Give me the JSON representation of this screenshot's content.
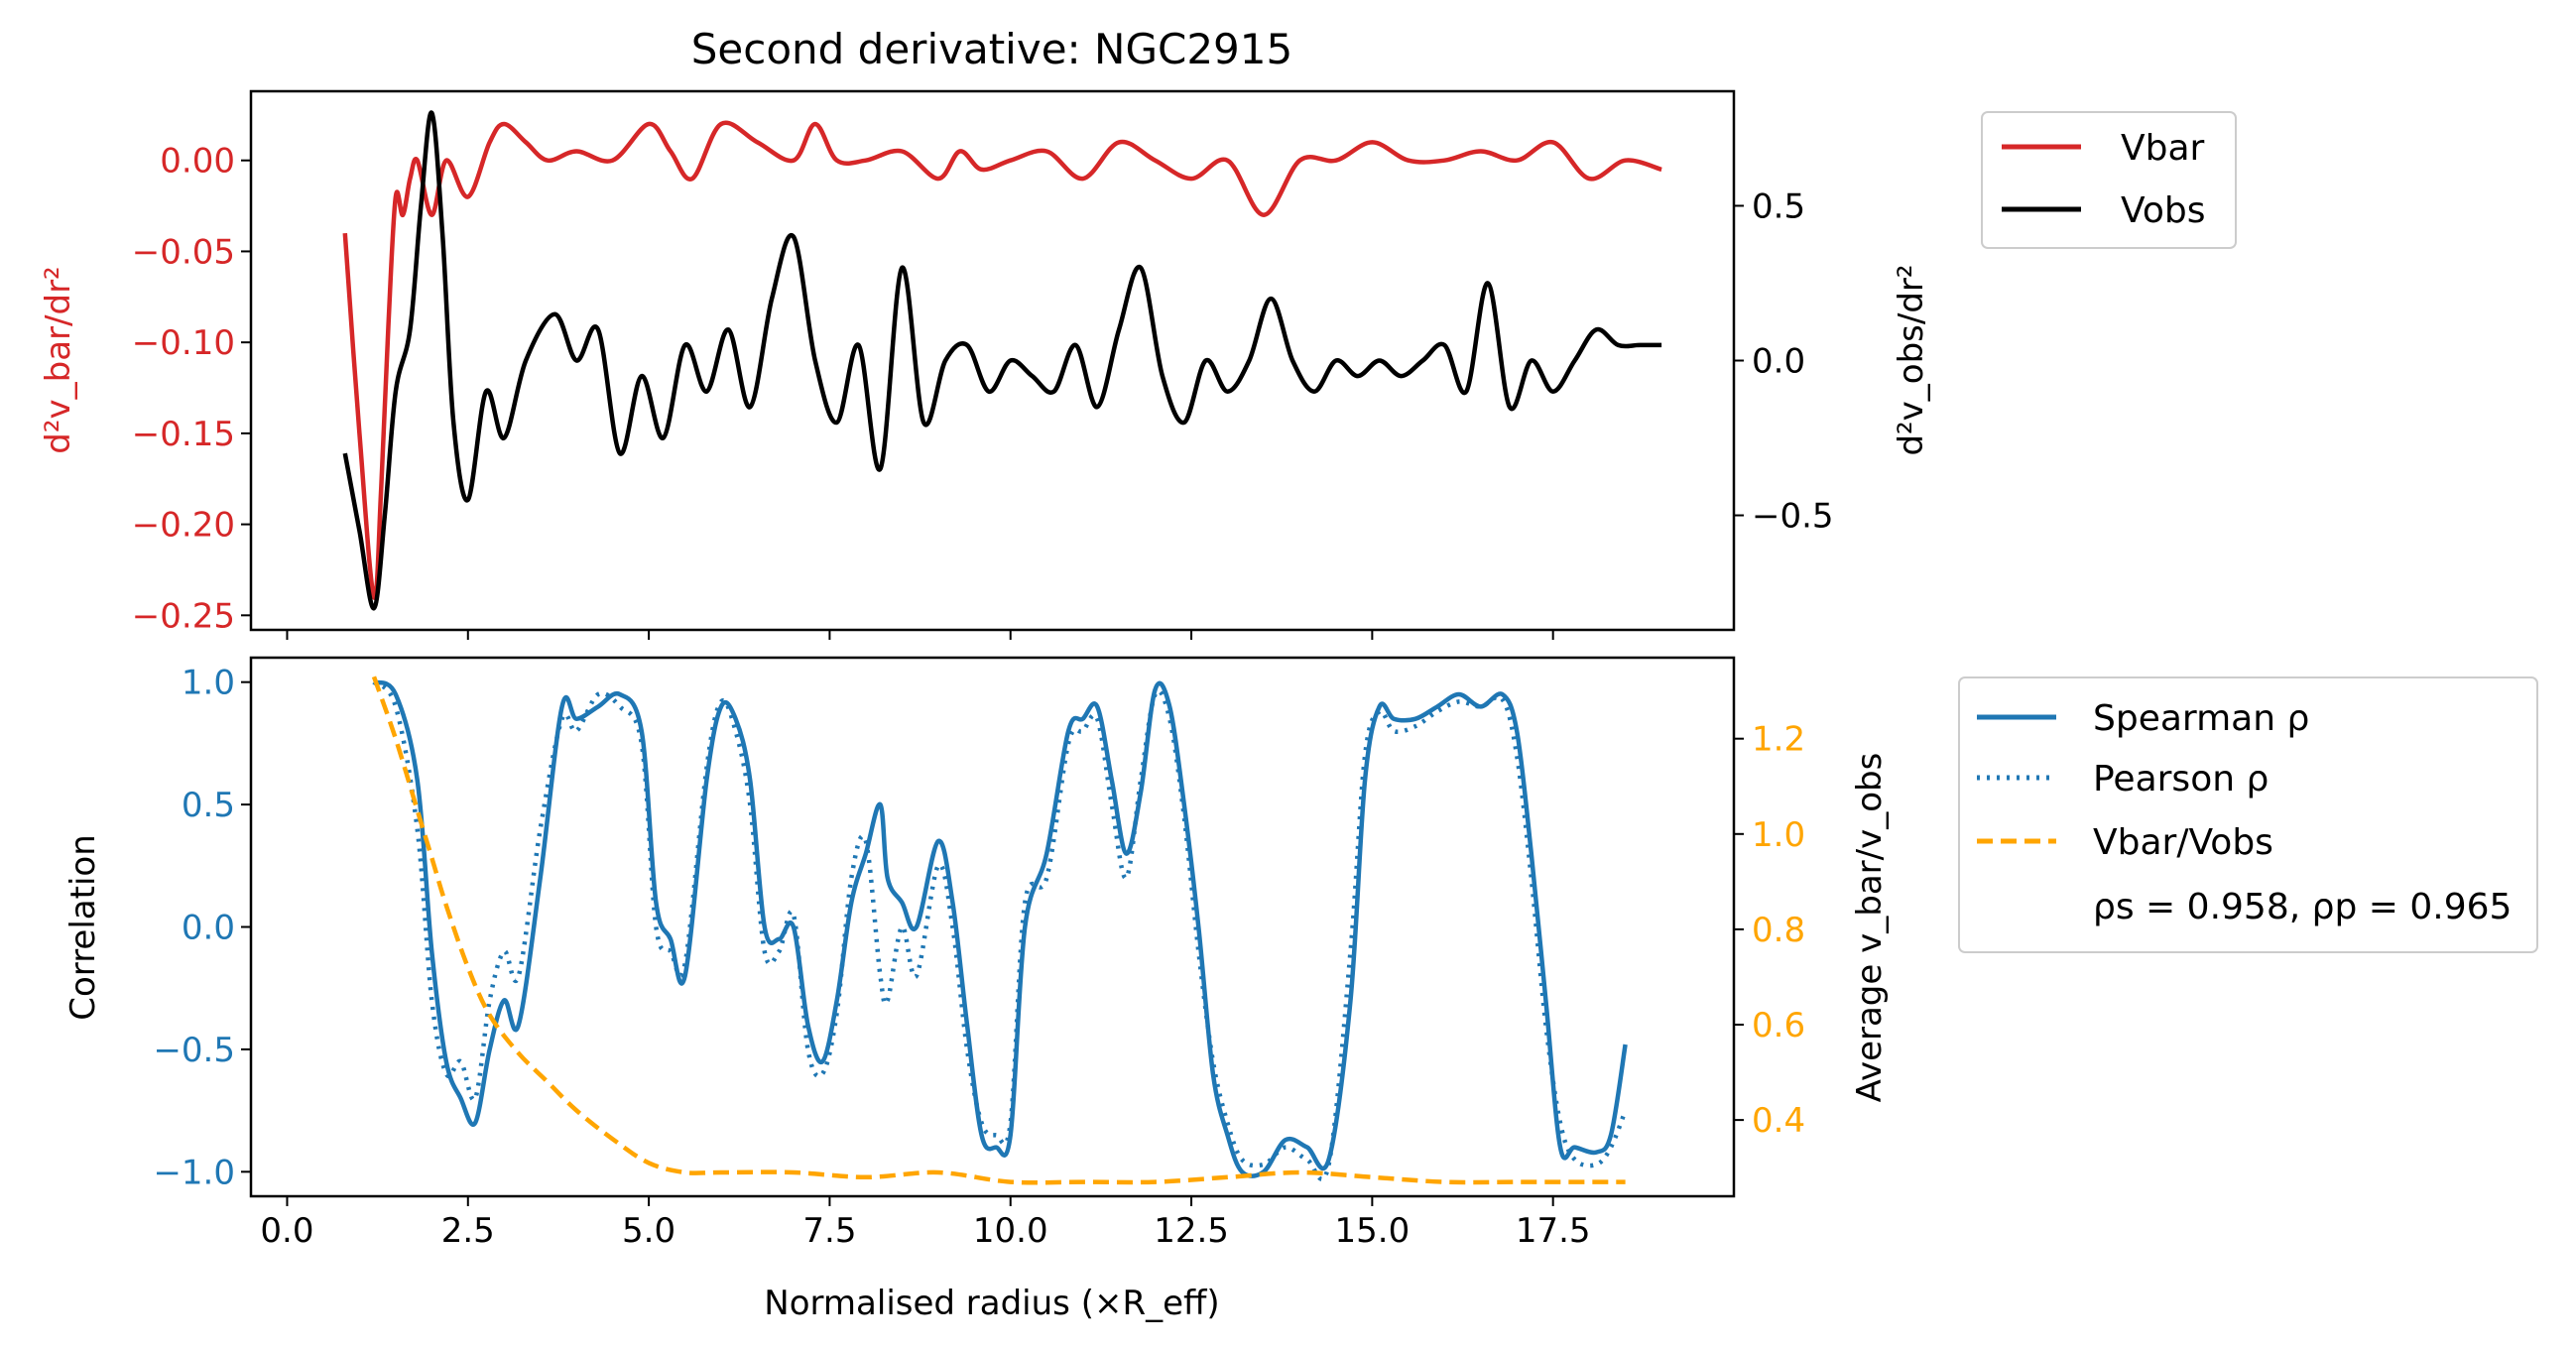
{
  "figure_title": "Second derivative: NGC2915",
  "colors": {
    "vbar": "#d62728",
    "vobs": "#000000",
    "spearman": "#1f77b4",
    "pearson": "#1f77b4",
    "ratio": "#ffa500"
  },
  "chart_data": [
    {
      "type": "line",
      "panel": "top",
      "title": "Second derivative: NGC2915",
      "xlim": [
        -0.5,
        20.0
      ],
      "left_axis": {
        "label": "d²v_bar/dr²",
        "ylim": [
          -0.258,
          0.038
        ],
        "ticks": [
          0.0,
          -0.05,
          -0.1,
          -0.15,
          -0.2,
          -0.25
        ],
        "tick_labels": [
          "0.00",
          "−0.05",
          "−0.10",
          "−0.15",
          "−0.20",
          "−0.25"
        ]
      },
      "right_axis": {
        "label": "d²v_obs/dr²",
        "ylim": [
          -0.87,
          0.87
        ],
        "ticks": [
          0.5,
          0.0,
          -0.5
        ],
        "tick_labels": [
          "0.5",
          "0.0",
          "−0.5"
        ]
      },
      "legend": {
        "placement": "outside-top-right",
        "entries": [
          "Vbar",
          "Vobs"
        ]
      },
      "series": [
        {
          "name": "Vbar",
          "axis": "left",
          "x": [
            0.8,
            1.0,
            1.2,
            1.3,
            1.4,
            1.5,
            1.6,
            1.7,
            1.8,
            2.0,
            2.2,
            2.5,
            2.8,
            3.0,
            3.3,
            3.6,
            4.0,
            4.5,
            5.0,
            5.3,
            5.6,
            6.0,
            6.5,
            7.0,
            7.3,
            7.6,
            8.0,
            8.5,
            9.0,
            9.3,
            9.6,
            10.0,
            10.5,
            11.0,
            11.5,
            12.0,
            12.5,
            13.0,
            13.5,
            14.0,
            14.5,
            15.0,
            15.5,
            16.0,
            16.5,
            17.0,
            17.5,
            18.0,
            18.5,
            19.0
          ],
          "values": [
            -0.04,
            -0.15,
            -0.24,
            -0.18,
            -0.09,
            -0.02,
            -0.03,
            -0.01,
            0.0,
            -0.03,
            0.0,
            -0.02,
            0.01,
            0.02,
            0.01,
            0.0,
            0.005,
            0.0,
            0.02,
            0.005,
            -0.01,
            0.02,
            0.01,
            0.0,
            0.02,
            0.0,
            0.0,
            0.005,
            -0.01,
            0.005,
            -0.005,
            0.0,
            0.005,
            -0.01,
            0.01,
            0.0,
            -0.01,
            0.0,
            -0.03,
            0.0,
            0.0,
            0.01,
            0.0,
            0.0,
            0.005,
            0.0,
            0.01,
            -0.01,
            0.0,
            -0.005
          ]
        },
        {
          "name": "Vobs",
          "axis": "right",
          "x": [
            0.8,
            1.0,
            1.2,
            1.35,
            1.5,
            1.7,
            1.85,
            2.0,
            2.15,
            2.3,
            2.5,
            2.75,
            3.0,
            3.3,
            3.7,
            4.0,
            4.3,
            4.6,
            4.9,
            5.2,
            5.5,
            5.8,
            6.1,
            6.4,
            6.7,
            7.0,
            7.3,
            7.6,
            7.9,
            8.2,
            8.5,
            8.8,
            9.1,
            9.4,
            9.7,
            10.0,
            10.3,
            10.6,
            10.9,
            11.2,
            11.5,
            11.8,
            12.1,
            12.4,
            12.7,
            13.0,
            13.3,
            13.6,
            13.9,
            14.2,
            14.5,
            14.8,
            15.1,
            15.4,
            15.7,
            16.0,
            16.3,
            16.6,
            16.9,
            17.2,
            17.5,
            17.8,
            18.1,
            18.4,
            18.7,
            19.0
          ],
          "values": [
            -0.3,
            -0.55,
            -0.8,
            -0.5,
            -0.1,
            0.1,
            0.5,
            0.8,
            0.4,
            -0.2,
            -0.45,
            -0.1,
            -0.25,
            0.0,
            0.15,
            0.0,
            0.1,
            -0.3,
            -0.05,
            -0.25,
            0.05,
            -0.1,
            0.1,
            -0.15,
            0.2,
            0.4,
            0.0,
            -0.2,
            0.05,
            -0.35,
            0.3,
            -0.2,
            0.0,
            0.05,
            -0.1,
            0.0,
            -0.05,
            -0.1,
            0.05,
            -0.15,
            0.1,
            0.3,
            -0.05,
            -0.2,
            0.0,
            -0.1,
            0.0,
            0.2,
            0.0,
            -0.1,
            0.0,
            -0.05,
            0.0,
            -0.05,
            0.0,
            0.05,
            -0.1,
            0.25,
            -0.15,
            0.0,
            -0.1,
            0.0,
            0.1,
            0.05,
            0.05,
            0.05
          ]
        }
      ]
    },
    {
      "type": "line",
      "panel": "bottom",
      "xlabel": "Normalised radius (×R_eff)",
      "xlim": [
        -0.5,
        20.0
      ],
      "x_ticks": [
        0.0,
        2.5,
        5.0,
        7.5,
        10.0,
        12.5,
        15.0,
        17.5
      ],
      "x_tick_labels": [
        "0.0",
        "2.5",
        "5.0",
        "7.5",
        "10.0",
        "12.5",
        "15.0",
        "17.5"
      ],
      "left_axis": {
        "label": "Correlation",
        "ylim": [
          -1.1,
          1.1
        ],
        "ticks": [
          1.0,
          0.5,
          0.0,
          -0.5,
          -1.0
        ],
        "tick_labels": [
          "1.0",
          "0.5",
          "0.0",
          "−0.5",
          "−1.0"
        ]
      },
      "right_axis": {
        "label": "Average v_bar/v_obs",
        "ylim": [
          0.24,
          1.37
        ],
        "ticks": [
          1.2,
          1.0,
          0.8,
          0.6,
          0.4
        ],
        "tick_labels": [
          "1.2",
          "1.0",
          "0.8",
          "0.6",
          "0.4"
        ]
      },
      "legend": {
        "placement": "outside-right",
        "entries": [
          "Spearman ρ",
          "Pearson ρ",
          "Vbar/Vobs"
        ],
        "annotation": "ρs = 0.958, ρp = 0.965"
      },
      "series": [
        {
          "name": "Spearman ρ",
          "axis": "left",
          "style": "solid",
          "x": [
            1.2,
            1.5,
            1.8,
            2.0,
            2.2,
            2.4,
            2.6,
            2.8,
            3.0,
            3.2,
            3.5,
            3.8,
            4.0,
            4.3,
            4.6,
            4.9,
            5.1,
            5.3,
            5.5,
            5.8,
            6.0,
            6.2,
            6.4,
            6.6,
            6.8,
            7.0,
            7.2,
            7.4,
            7.6,
            7.8,
            8.0,
            8.2,
            8.3,
            8.5,
            8.7,
            9.0,
            9.2,
            9.4,
            9.6,
            9.8,
            10.0,
            10.2,
            10.5,
            10.8,
            11.0,
            11.2,
            11.4,
            11.6,
            11.8,
            12.0,
            12.2,
            12.4,
            12.6,
            12.8,
            13.0,
            13.2,
            13.5,
            13.8,
            14.1,
            14.4,
            14.7,
            14.9,
            15.1,
            15.3,
            15.6,
            15.9,
            16.2,
            16.5,
            16.8,
            17.0,
            17.2,
            17.4,
            17.6,
            17.8,
            18.1,
            18.3,
            18.5
          ],
          "values": [
            1.0,
            0.95,
            0.6,
            -0.1,
            -0.55,
            -0.7,
            -0.8,
            -0.5,
            -0.3,
            -0.4,
            0.2,
            0.9,
            0.85,
            0.9,
            0.95,
            0.8,
            0.1,
            -0.05,
            -0.2,
            0.6,
            0.9,
            0.85,
            0.6,
            0.0,
            -0.05,
            0.0,
            -0.4,
            -0.55,
            -0.3,
            0.1,
            0.3,
            0.5,
            0.2,
            0.1,
            0.0,
            0.35,
            0.1,
            -0.4,
            -0.85,
            -0.9,
            -0.85,
            0.0,
            0.3,
            0.8,
            0.85,
            0.9,
            0.6,
            0.3,
            0.55,
            0.97,
            0.9,
            0.5,
            0.0,
            -0.6,
            -0.85,
            -1.0,
            -1.0,
            -0.87,
            -0.9,
            -0.95,
            -0.3,
            0.6,
            0.9,
            0.85,
            0.85,
            0.9,
            0.95,
            0.9,
            0.95,
            0.8,
            0.3,
            -0.3,
            -0.9,
            -0.9,
            -0.92,
            -0.85,
            -0.48
          ]
        },
        {
          "name": "Pearson ρ",
          "axis": "left",
          "style": "dotted",
          "x": [
            1.2,
            1.5,
            1.8,
            2.0,
            2.2,
            2.4,
            2.6,
            2.8,
            3.0,
            3.2,
            3.5,
            3.8,
            4.0,
            4.3,
            4.6,
            4.9,
            5.1,
            5.3,
            5.5,
            5.8,
            6.0,
            6.2,
            6.4,
            6.6,
            6.8,
            7.0,
            7.2,
            7.4,
            7.6,
            7.8,
            8.0,
            8.2,
            8.3,
            8.5,
            8.7,
            9.0,
            9.2,
            9.4,
            9.6,
            9.8,
            10.0,
            10.2,
            10.5,
            10.8,
            11.0,
            11.2,
            11.4,
            11.6,
            11.8,
            12.0,
            12.2,
            12.4,
            12.6,
            12.8,
            13.0,
            13.2,
            13.5,
            13.8,
            14.1,
            14.4,
            14.7,
            14.9,
            15.1,
            15.3,
            15.6,
            15.9,
            16.2,
            16.5,
            16.8,
            17.0,
            17.2,
            17.4,
            17.6,
            17.8,
            18.1,
            18.3,
            18.5
          ],
          "values": [
            1.0,
            0.9,
            0.4,
            -0.3,
            -0.6,
            -0.55,
            -0.7,
            -0.3,
            -0.1,
            -0.2,
            0.4,
            0.85,
            0.8,
            0.95,
            0.9,
            0.75,
            0.0,
            -0.1,
            -0.15,
            0.65,
            0.92,
            0.8,
            0.5,
            -0.1,
            -0.1,
            0.05,
            -0.5,
            -0.6,
            -0.35,
            0.2,
            0.35,
            -0.2,
            -0.3,
            0.0,
            -0.2,
            0.25,
            0.0,
            -0.5,
            -0.8,
            -0.85,
            -0.8,
            0.1,
            0.2,
            0.75,
            0.8,
            0.85,
            0.5,
            0.2,
            0.6,
            0.95,
            0.85,
            0.45,
            -0.1,
            -0.55,
            -0.8,
            -0.95,
            -0.97,
            -0.9,
            -0.95,
            -0.97,
            -0.1,
            0.7,
            0.88,
            0.8,
            0.82,
            0.88,
            0.92,
            0.9,
            0.93,
            0.7,
            0.2,
            -0.4,
            -0.8,
            -0.95,
            -0.97,
            -0.9,
            -0.75
          ]
        },
        {
          "name": "Vbar/Vobs",
          "axis": "right",
          "style": "dashed",
          "x": [
            1.2,
            1.5,
            1.8,
            2.0,
            2.2,
            2.5,
            2.8,
            3.2,
            3.6,
            4.0,
            4.5,
            5.0,
            5.5,
            6.0,
            7.0,
            8.0,
            9.0,
            10.0,
            11.0,
            12.0,
            13.0,
            14.0,
            15.0,
            16.0,
            17.0,
            18.0,
            18.5
          ],
          "values": [
            1.33,
            1.2,
            1.05,
            0.95,
            0.85,
            0.72,
            0.62,
            0.54,
            0.48,
            0.42,
            0.36,
            0.31,
            0.29,
            0.29,
            0.29,
            0.28,
            0.29,
            0.27,
            0.27,
            0.27,
            0.28,
            0.29,
            0.28,
            0.27,
            0.27,
            0.27,
            0.27
          ]
        }
      ]
    }
  ]
}
